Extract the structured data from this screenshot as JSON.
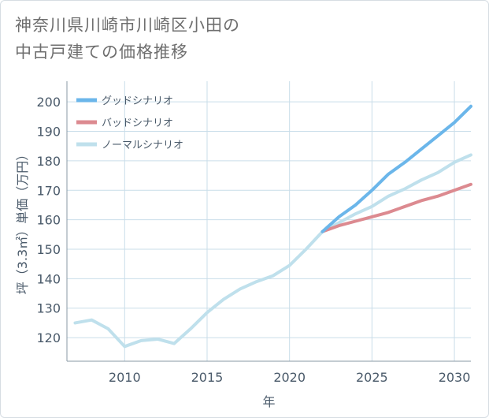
{
  "title_lines": [
    "神奈川県川崎市川崎区小田の",
    "中古戸建ての価格推移"
  ],
  "chart_data": {
    "type": "line",
    "title": "神奈川県川崎市川崎区小田の中古戸建ての価格推移",
    "xlabel": "年",
    "ylabel": "坪（3.3㎡）単価（万円）",
    "xlim": [
      2006.5,
      2031
    ],
    "ylim": [
      112,
      207
    ],
    "x_ticks": [
      2010,
      2015,
      2020,
      2025,
      2030
    ],
    "y_ticks": [
      120,
      130,
      140,
      150,
      160,
      170,
      180,
      190,
      200
    ],
    "grid": true,
    "legend_position": "top-left",
    "series": [
      {
        "name": "グッドシナリオ",
        "color": "#6bb6ea",
        "x": [
          2022,
          2023,
          2024,
          2025,
          2026,
          2027,
          2028,
          2029,
          2030,
          2031
        ],
        "values": [
          156,
          161,
          165,
          170,
          175.5,
          179.5,
          184,
          188.5,
          193,
          198.5
        ]
      },
      {
        "name": "バッドシナリオ",
        "color": "#dc8a90",
        "x": [
          2022,
          2023,
          2024,
          2025,
          2026,
          2027,
          2028,
          2029,
          2030,
          2031
        ],
        "values": [
          156,
          158,
          159.5,
          161,
          162.5,
          164.5,
          166.5,
          168,
          170,
          172
        ]
      },
      {
        "name": "ノーマルシナリオ",
        "color": "#bfe0ec",
        "x": [
          2007,
          2008,
          2009,
          2010,
          2011,
          2012,
          2013,
          2014,
          2015,
          2016,
          2017,
          2018,
          2019,
          2020,
          2021,
          2022,
          2023,
          2024,
          2025,
          2026,
          2027,
          2028,
          2029,
          2030,
          2031
        ],
        "values": [
          125,
          126,
          123,
          117,
          119,
          119.5,
          118,
          123,
          128.5,
          133,
          136.5,
          139,
          141,
          144.5,
          150,
          156,
          159,
          162,
          164.5,
          168,
          170.5,
          173.5,
          176,
          179.5,
          182
        ]
      }
    ]
  }
}
